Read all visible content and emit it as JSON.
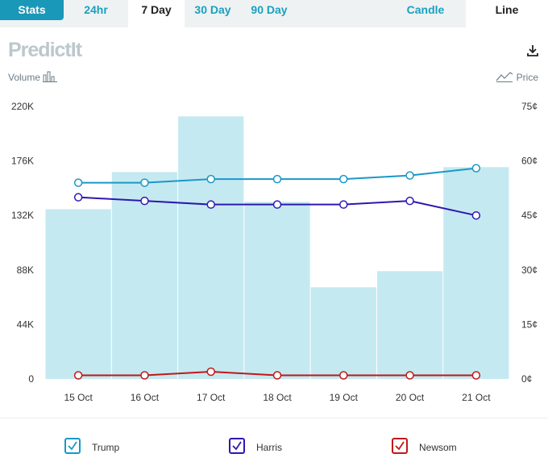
{
  "tabs": {
    "stats": "Stats",
    "ranges": [
      "24hr",
      "7 Day",
      "30 Day",
      "90 Day"
    ],
    "active_range": "7 Day",
    "candle": "Candle",
    "line": "Line"
  },
  "logo_text": "PredictIt",
  "toggles": {
    "volume": "Volume",
    "price": "Price"
  },
  "colors": {
    "volume_bar": "#c5e9f1",
    "trump": "#1a98c8",
    "harris": "#2d18b0",
    "newsom": "#c01818"
  },
  "chart_data": {
    "type": "bar",
    "categories": [
      "15 Oct",
      "16 Oct",
      "17 Oct",
      "18 Oct",
      "19 Oct",
      "20 Oct",
      "21 Oct"
    ],
    "volume": [
      137000,
      167000,
      212000,
      143000,
      74000,
      87000,
      171000
    ],
    "left_axis": {
      "min": 0,
      "max": 220000,
      "ticks": [
        "0",
        "44K",
        "88K",
        "132K",
        "176K",
        "220K"
      ]
    },
    "right_axis": {
      "min": 0,
      "max": 75,
      "ticks": [
        "0¢",
        "15¢",
        "30¢",
        "45¢",
        "60¢",
        "75¢"
      ]
    },
    "series": [
      {
        "name": "Trump",
        "color": "#1a98c8",
        "values": [
          54,
          54,
          55,
          55,
          55,
          56,
          58
        ]
      },
      {
        "name": "Harris",
        "color": "#2d18b0",
        "values": [
          50,
          49,
          48,
          48,
          48,
          49,
          45
        ]
      },
      {
        "name": "Newsom",
        "color": "#c01818",
        "values": [
          1,
          1,
          2,
          1,
          1,
          1,
          1
        ]
      }
    ]
  },
  "legend": [
    {
      "label": "Trump",
      "color": "#1a98c8"
    },
    {
      "label": "Harris",
      "color": "#2d18b0"
    },
    {
      "label": "Newsom",
      "color": "#c01818"
    }
  ]
}
